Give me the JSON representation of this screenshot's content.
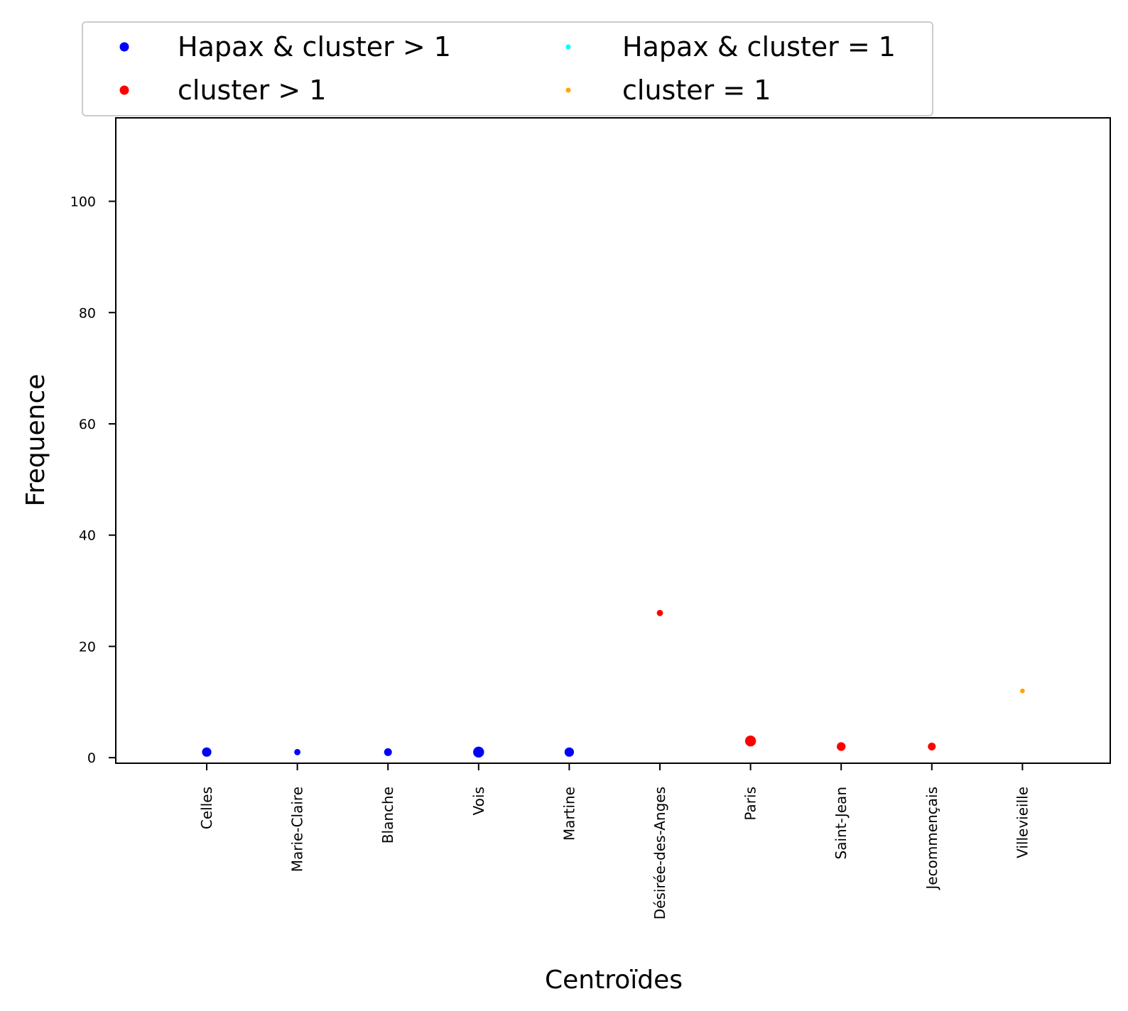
{
  "chart_data": {
    "type": "scatter",
    "title": "",
    "xlabel": "Centroïdes",
    "ylabel": "Frequence",
    "ylim": [
      -1,
      115
    ],
    "yticks": [
      0,
      20,
      40,
      60,
      80,
      100
    ],
    "categories": [
      "Celles",
      "Marie-Claire",
      "Blanche",
      "Vois",
      "Martine",
      "Désirée-des-Anges",
      "Paris",
      "Saint-Jean",
      "Jecommençais",
      "Villevieille"
    ],
    "grid": false,
    "legend_position": "top",
    "series": [
      {
        "name": "Hapax & cluster > 1",
        "color": "#0000ff",
        "points": [
          {
            "x": "Celles",
            "y": 1,
            "size": 3
          },
          {
            "x": "Marie-Claire",
            "y": 1,
            "size": 2
          },
          {
            "x": "Blanche",
            "y": 1,
            "size": 2.5
          },
          {
            "x": "Vois",
            "y": 1,
            "size": 3.5
          },
          {
            "x": "Martine",
            "y": 1,
            "size": 3
          }
        ]
      },
      {
        "name": "cluster > 1",
        "color": "#ff0000",
        "points": [
          {
            "x": "Désirée-des-Anges",
            "y": 26,
            "size": 2
          },
          {
            "x": "Paris",
            "y": 3,
            "size": 3.5
          },
          {
            "x": "Saint-Jean",
            "y": 2,
            "size": 2.8
          },
          {
            "x": "Jecommençais",
            "y": 2,
            "size": 2.5
          }
        ]
      },
      {
        "name": "Hapax & cluster = 1",
        "color": "#00ffff",
        "points": []
      },
      {
        "name": "cluster = 1",
        "color": "#ffa500",
        "points": [
          {
            "x": "Villevieille",
            "y": 12,
            "size": 1.5
          }
        ]
      }
    ]
  }
}
